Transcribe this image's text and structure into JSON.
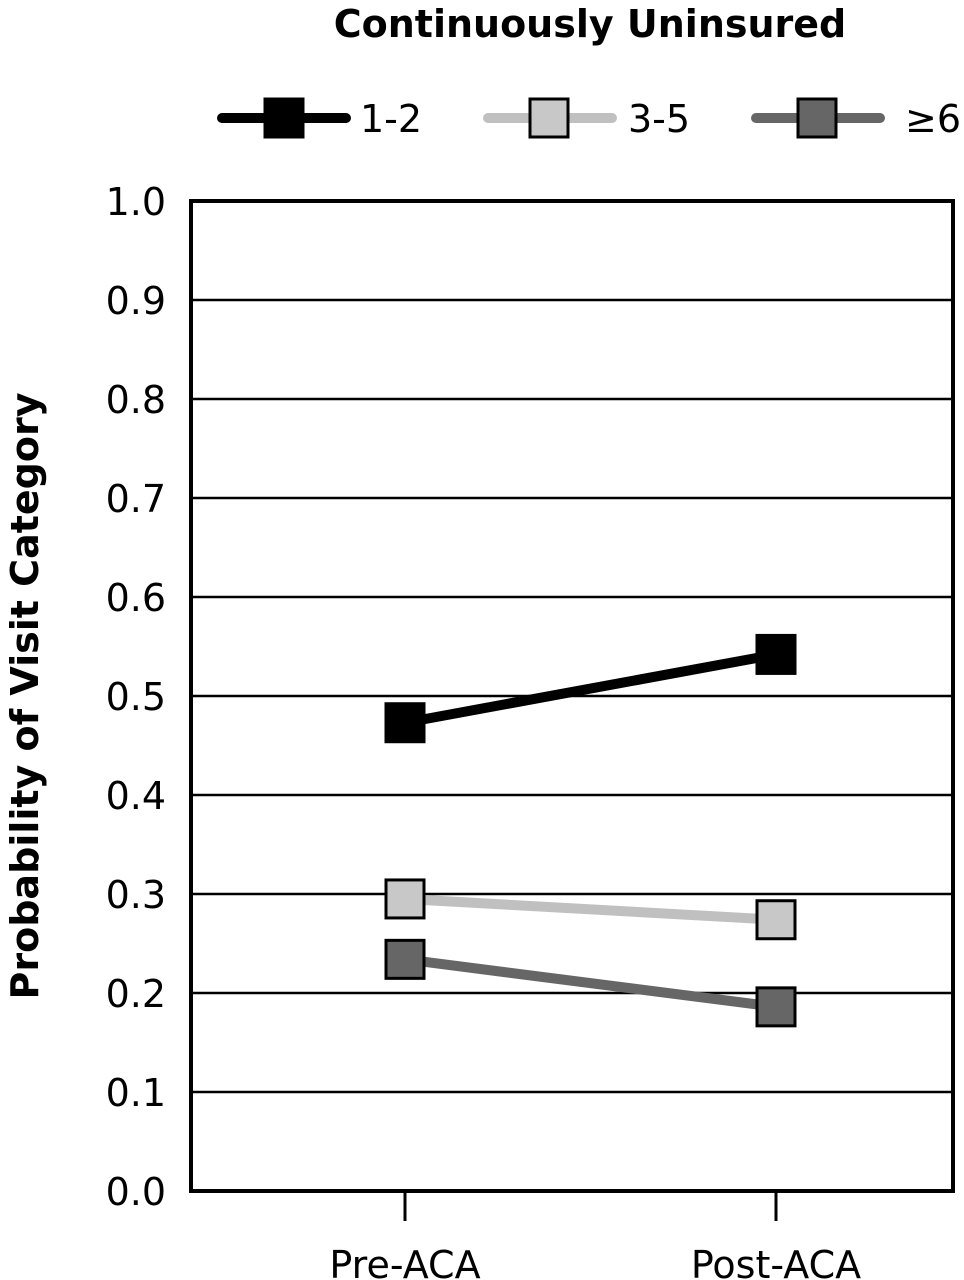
{
  "chart_data": {
    "type": "line",
    "title": "Continuously Uninsured",
    "xlabel": "",
    "ylabel": "Probability of Visit Category",
    "categories": [
      "Pre-ACA",
      "Post-ACA"
    ],
    "ylim": [
      0,
      1.0
    ],
    "yticks": [
      "0.0",
      "0.1",
      "0.2",
      "0.3",
      "0.4",
      "0.5",
      "0.6",
      "0.7",
      "0.8",
      "0.9",
      "1.0"
    ],
    "grid": true,
    "legend_position": "top",
    "series": [
      {
        "name": "1-2",
        "values": [
          0.473,
          0.542
        ],
        "color": "#000000",
        "marker_fill": "#000000"
      },
      {
        "name": "3-5",
        "values": [
          0.295,
          0.274
        ],
        "color": "#c0c0c0",
        "marker_fill": "#c8c8c8"
      },
      {
        "name": "≥6",
        "values": [
          0.234,
          0.186
        ],
        "color": "#666666",
        "marker_fill": "#666666"
      }
    ]
  }
}
